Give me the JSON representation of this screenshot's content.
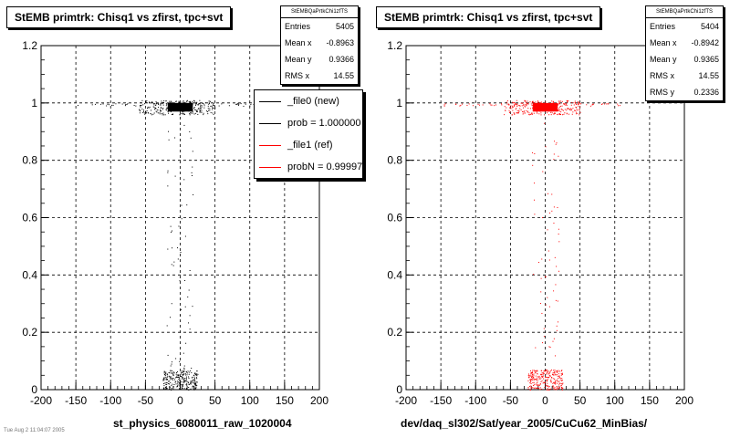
{
  "footer_text": "Tue Aug  2 11:04:07 2005",
  "colors": {
    "new": "#000000",
    "ref": "#ff0000",
    "grid": "#000000"
  },
  "panels": [
    {
      "title": "StEMB primtrk: Chisq1 vs zfirst, tpc+svt",
      "xlabel": "st_physics_6080011_raw_1020004",
      "stats": {
        "name": "StEMBQaPrtkChi1zfTS",
        "rows": [
          {
            "label": "Entries",
            "value": "5405"
          },
          {
            "label": "Mean x",
            "value": "-0.8963"
          },
          {
            "label": "Mean y",
            "value": "0.9366"
          },
          {
            "label": "RMS x",
            "value": "14.55"
          }
        ]
      },
      "legend": [
        {
          "label": "_file0 (new)",
          "color": "#000000"
        },
        {
          "label": "prob = 1.000000",
          "color": "#000000"
        },
        {
          "label": "_file1 (ref)",
          "color": "#ff0000"
        },
        {
          "label": "probN = 0.999976",
          "color": "#ff0000"
        }
      ]
    },
    {
      "title": "StEMB primtrk: Chisq1 vs zfirst, tpc+svt",
      "xlabel": "dev/daq_sl302/Sat/year_2005/CuCu62_MinBias/",
      "stats": {
        "name": "StEMBQaPrtkChi1zfTS",
        "rows": [
          {
            "label": "Entries",
            "value": "5404"
          },
          {
            "label": "Mean x",
            "value": "-0.8942"
          },
          {
            "label": "Mean y",
            "value": "0.9365"
          },
          {
            "label": "RMS x",
            "value": "14.55"
          },
          {
            "label": "RMS y",
            "value": "0.2336"
          }
        ]
      },
      "legend": []
    }
  ],
  "chart_data": [
    {
      "type": "scatter",
      "title": "StEMB primtrk: Chisq1 vs zfirst, tpc+svt",
      "xlabel": "st_physics_6080011_raw_1020004",
      "ylabel": "",
      "xlim": [
        -200,
        200
      ],
      "ylim": [
        0,
        1.2
      ],
      "xticks": [
        -200,
        -150,
        -100,
        -50,
        0,
        50,
        100,
        150,
        200
      ],
      "yticks": [
        0,
        0.2,
        0.4,
        0.6,
        0.8,
        1,
        1.2
      ],
      "grid": true,
      "legend_position": "top-right",
      "color": "#000000",
      "series": [
        {
          "name": "_file0 (new)",
          "clusters": [
            {
              "x_range": [
                -18,
                18
              ],
              "y_range": [
                0.97,
                1.0
              ],
              "density": "saturated"
            },
            {
              "x_range": [
                -60,
                50
              ],
              "y_range": [
                0.96,
                1.01
              ],
              "density": "dense"
            },
            {
              "x_range": [
                -150,
                110
              ],
              "y_range": [
                0.99,
                1.0
              ],
              "density": "sparse"
            },
            {
              "x_range": [
                -25,
                25
              ],
              "y_range": [
                0.0,
                0.07
              ],
              "density": "dense"
            },
            {
              "x_range": [
                -20,
                20
              ],
              "y_range": [
                0.07,
                0.95
              ],
              "density": "sparse"
            }
          ]
        }
      ]
    },
    {
      "type": "scatter",
      "title": "StEMB primtrk: Chisq1 vs zfirst, tpc+svt",
      "xlabel": "dev/daq_sl302/Sat/year_2005/CuCu62_MinBias/",
      "ylabel": "",
      "xlim": [
        -200,
        200
      ],
      "ylim": [
        0,
        1.2
      ],
      "xticks": [
        -200,
        -150,
        -100,
        -50,
        0,
        50,
        100,
        150,
        200
      ],
      "yticks": [
        0,
        0.2,
        0.4,
        0.6,
        0.8,
        1,
        1.2
      ],
      "grid": true,
      "color": "#ff0000",
      "series": [
        {
          "name": "_file1 (ref)",
          "clusters": [
            {
              "x_range": [
                -18,
                18
              ],
              "y_range": [
                0.97,
                1.0
              ],
              "density": "saturated"
            },
            {
              "x_range": [
                -60,
                50
              ],
              "y_range": [
                0.96,
                1.01
              ],
              "density": "dense"
            },
            {
              "x_range": [
                -150,
                110
              ],
              "y_range": [
                0.99,
                1.0
              ],
              "density": "sparse"
            },
            {
              "x_range": [
                -25,
                25
              ],
              "y_range": [
                0.0,
                0.07
              ],
              "density": "dense"
            },
            {
              "x_range": [
                -20,
                20
              ],
              "y_range": [
                0.07,
                0.95
              ],
              "density": "sparse"
            }
          ]
        }
      ]
    }
  ]
}
